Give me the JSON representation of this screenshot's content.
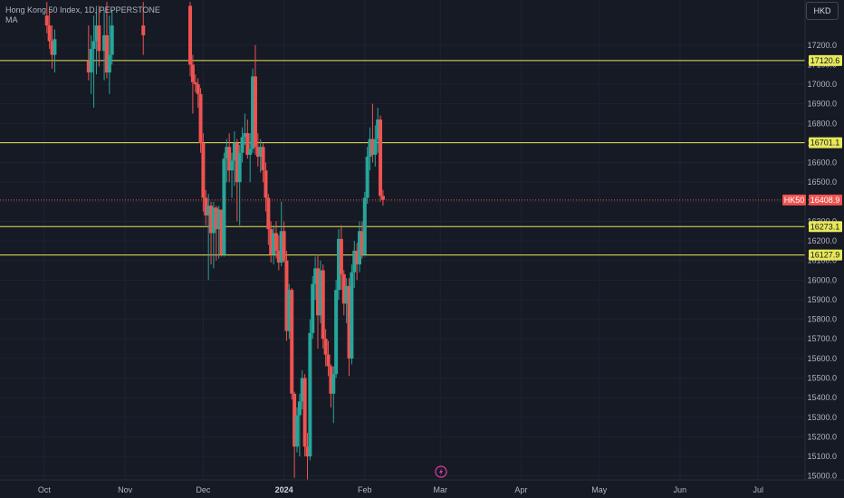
{
  "header": {
    "symbol_title": "Hong Kong 50 Index, 1D, PEPPERSTONE",
    "indicator": "MA",
    "currency": "HKD"
  },
  "colors": {
    "background": "#161a25",
    "grid": "#1f2330",
    "up": "#26a69a",
    "down": "#ef5350",
    "hline": "#e8e85a",
    "axis_text": "#b2b5be",
    "price_line": "#ef5350"
  },
  "icons": {
    "bottom_marker": "lightning-icon"
  },
  "chart_data": {
    "type": "candlestick",
    "title": "Hong Kong 50 Index, 1D, PEPPERSTONE",
    "symbol": "HK50",
    "currency": "HKD",
    "ylim": [
      14980,
      17430
    ],
    "y_ticks": [
      15000,
      15100,
      15200,
      15300,
      15400,
      15500,
      15600,
      15700,
      15800,
      15900,
      16000,
      16100,
      16200,
      16300,
      16400,
      16500,
      16600,
      16700,
      16800,
      16900,
      17000,
      17100,
      17200
    ],
    "x_ticks": [
      "Oct",
      "Nov",
      "Dec",
      "2024",
      "Feb",
      "Mar",
      "Apr",
      "May",
      "Jun",
      "Jul"
    ],
    "x_ticks_bold": [
      "2024"
    ],
    "x_tick_days": [
      0,
      31,
      61,
      92,
      123,
      152,
      183,
      213,
      244,
      274
    ],
    "x_domain_days": [
      -17,
      292
    ],
    "horizontal_levels": [
      17120.6,
      16701.1,
      16273.1,
      16127.9
    ],
    "horizontal_level_labels": [
      "17120.6",
      "16701.1",
      "16273.1",
      "16127.9"
    ],
    "last_price": 16408.9,
    "last_price_label": "16408.9",
    "last_price_symbol": "HK50",
    "grid": true,
    "candles": [
      {
        "day": 1,
        "o": 17350,
        "h": 17420,
        "l": 17260,
        "c": 17300
      },
      {
        "day": 2,
        "o": 17300,
        "h": 17380,
        "l": 17180,
        "c": 17220
      },
      {
        "day": 3,
        "o": 17220,
        "h": 17300,
        "l": 17080,
        "c": 17150
      },
      {
        "day": 4,
        "o": 17150,
        "h": 17280,
        "l": 17060,
        "c": 17230
      },
      {
        "day": 17,
        "o": 17120,
        "h": 17300,
        "l": 17020,
        "c": 17060
      },
      {
        "day": 18,
        "o": 17060,
        "h": 17250,
        "l": 16950,
        "c": 17180
      },
      {
        "day": 19,
        "o": 17180,
        "h": 17350,
        "l": 16880,
        "c": 17220
      },
      {
        "day": 20,
        "o": 17220,
        "h": 17400,
        "l": 17050,
        "c": 17300
      },
      {
        "day": 21,
        "o": 17300,
        "h": 17400,
        "l": 17090,
        "c": 17170
      },
      {
        "day": 23,
        "o": 17170,
        "h": 17380,
        "l": 17020,
        "c": 17250
      },
      {
        "day": 24,
        "o": 17250,
        "h": 17420,
        "l": 17030,
        "c": 17060
      },
      {
        "day": 25,
        "o": 17060,
        "h": 17350,
        "l": 16950,
        "c": 17150
      },
      {
        "day": 26,
        "o": 17150,
        "h": 17380,
        "l": 17100,
        "c": 17300
      },
      {
        "day": 38,
        "o": 17300,
        "h": 17420,
        "l": 17150,
        "c": 17250
      },
      {
        "day": 56,
        "o": 17400,
        "h": 17420,
        "l": 17040,
        "c": 17100
      },
      {
        "day": 57,
        "o": 17100,
        "h": 17150,
        "l": 16850,
        "c": 17010
      },
      {
        "day": 58,
        "o": 17010,
        "h": 17050,
        "l": 16960,
        "c": 17000
      },
      {
        "day": 59,
        "o": 17000,
        "h": 17030,
        "l": 16880,
        "c": 16950
      },
      {
        "day": 60,
        "o": 16950,
        "h": 16980,
        "l": 16650,
        "c": 16700
      },
      {
        "day": 61,
        "o": 16700,
        "h": 16750,
        "l": 16350,
        "c": 16420
      },
      {
        "day": 62,
        "o": 16420,
        "h": 16460,
        "l": 16280,
        "c": 16330
      },
      {
        "day": 63,
        "o": 16330,
        "h": 16440,
        "l": 16000,
        "c": 16380
      },
      {
        "day": 64,
        "o": 16380,
        "h": 16400,
        "l": 16080,
        "c": 16240
      },
      {
        "day": 65,
        "o": 16240,
        "h": 16400,
        "l": 16060,
        "c": 16370
      },
      {
        "day": 66,
        "o": 16370,
        "h": 16380,
        "l": 16100,
        "c": 16260
      },
      {
        "day": 67,
        "o": 16260,
        "h": 16380,
        "l": 16110,
        "c": 16360
      },
      {
        "day": 68,
        "o": 16360,
        "h": 16360,
        "l": 16120,
        "c": 16130
      },
      {
        "day": 69,
        "o": 16130,
        "h": 16650,
        "l": 16120,
        "c": 16620
      },
      {
        "day": 70,
        "o": 16620,
        "h": 16720,
        "l": 16500,
        "c": 16680
      },
      {
        "day": 71,
        "o": 16680,
        "h": 16750,
        "l": 16500,
        "c": 16560
      },
      {
        "day": 72,
        "o": 16560,
        "h": 16650,
        "l": 16420,
        "c": 16610
      },
      {
        "day": 73,
        "o": 16610,
        "h": 16760,
        "l": 16480,
        "c": 16700
      },
      {
        "day": 74,
        "o": 16700,
        "h": 16720,
        "l": 16300,
        "c": 16500
      },
      {
        "day": 75,
        "o": 16500,
        "h": 16690,
        "l": 16280,
        "c": 16650
      },
      {
        "day": 76,
        "o": 16650,
        "h": 16780,
        "l": 16600,
        "c": 16730
      },
      {
        "day": 77,
        "o": 16730,
        "h": 16850,
        "l": 16690,
        "c": 16750
      },
      {
        "day": 78,
        "o": 16750,
        "h": 16820,
        "l": 16620,
        "c": 16640
      },
      {
        "day": 79,
        "o": 16640,
        "h": 16750,
        "l": 16500,
        "c": 16670
      },
      {
        "day": 80,
        "o": 16670,
        "h": 17080,
        "l": 16650,
        "c": 17040
      },
      {
        "day": 81,
        "o": 17040,
        "h": 17200,
        "l": 16640,
        "c": 16680
      },
      {
        "day": 82,
        "o": 16680,
        "h": 16750,
        "l": 16580,
        "c": 16630
      },
      {
        "day": 83,
        "o": 16630,
        "h": 16720,
        "l": 16550,
        "c": 16680
      },
      {
        "day": 84,
        "o": 16680,
        "h": 16700,
        "l": 16500,
        "c": 16560
      },
      {
        "day": 85,
        "o": 16560,
        "h": 16600,
        "l": 16350,
        "c": 16420
      },
      {
        "day": 86,
        "o": 16420,
        "h": 16440,
        "l": 16180,
        "c": 16260
      },
      {
        "day": 87,
        "o": 16260,
        "h": 16300,
        "l": 16090,
        "c": 16130
      },
      {
        "day": 88,
        "o": 16130,
        "h": 16280,
        "l": 16080,
        "c": 16240
      },
      {
        "day": 89,
        "o": 16240,
        "h": 16300,
        "l": 16110,
        "c": 16150
      },
      {
        "day": 90,
        "o": 16150,
        "h": 16230,
        "l": 16050,
        "c": 16090
      },
      {
        "day": 91,
        "o": 16090,
        "h": 16400,
        "l": 16070,
        "c": 16250
      },
      {
        "day": 92,
        "o": 16250,
        "h": 16300,
        "l": 16090,
        "c": 16100
      },
      {
        "day": 93,
        "o": 16100,
        "h": 16150,
        "l": 15690,
        "c": 15740
      },
      {
        "day": 94,
        "o": 15740,
        "h": 15980,
        "l": 15700,
        "c": 15950
      },
      {
        "day": 95,
        "o": 15950,
        "h": 15960,
        "l": 15390,
        "c": 15420
      },
      {
        "day": 96,
        "o": 15420,
        "h": 15430,
        "l": 14990,
        "c": 15150
      },
      {
        "day": 97,
        "o": 15150,
        "h": 15350,
        "l": 15120,
        "c": 15310
      },
      {
        "day": 98,
        "o": 15310,
        "h": 15420,
        "l": 15100,
        "c": 15380
      },
      {
        "day": 99,
        "o": 15380,
        "h": 15540,
        "l": 15340,
        "c": 15500
      },
      {
        "day": 100,
        "o": 15500,
        "h": 15520,
        "l": 15100,
        "c": 15150
      },
      {
        "day": 101,
        "o": 15150,
        "h": 15220,
        "l": 14980,
        "c": 15100
      },
      {
        "day": 102,
        "o": 15100,
        "h": 15800,
        "l": 15080,
        "c": 15730
      },
      {
        "day": 103,
        "o": 15730,
        "h": 16020,
        "l": 15700,
        "c": 15980
      },
      {
        "day": 104,
        "o": 15980,
        "h": 16120,
        "l": 15900,
        "c": 16060
      },
      {
        "day": 105,
        "o": 16060,
        "h": 16130,
        "l": 15650,
        "c": 15820
      },
      {
        "day": 106,
        "o": 15820,
        "h": 16100,
        "l": 15780,
        "c": 16050
      },
      {
        "day": 107,
        "o": 16050,
        "h": 16080,
        "l": 15650,
        "c": 15700
      },
      {
        "day": 108,
        "o": 15700,
        "h": 15750,
        "l": 15560,
        "c": 15620
      },
      {
        "day": 109,
        "o": 15620,
        "h": 15690,
        "l": 15510,
        "c": 15560
      },
      {
        "day": 110,
        "o": 15560,
        "h": 15570,
        "l": 15350,
        "c": 15420
      },
      {
        "day": 111,
        "o": 15420,
        "h": 15560,
        "l": 15270,
        "c": 15520
      },
      {
        "day": 112,
        "o": 15520,
        "h": 16000,
        "l": 15500,
        "c": 15950
      },
      {
        "day": 113,
        "o": 15950,
        "h": 16260,
        "l": 15900,
        "c": 16210
      },
      {
        "day": 114,
        "o": 16210,
        "h": 16280,
        "l": 15950,
        "c": 16030
      },
      {
        "day": 115,
        "o": 16030,
        "h": 16050,
        "l": 15820,
        "c": 15880
      },
      {
        "day": 116,
        "o": 15880,
        "h": 16010,
        "l": 15780,
        "c": 15970
      },
      {
        "day": 117,
        "o": 15970,
        "h": 16010,
        "l": 15510,
        "c": 15600
      },
      {
        "day": 118,
        "o": 15600,
        "h": 16080,
        "l": 15570,
        "c": 16040
      },
      {
        "day": 119,
        "o": 16040,
        "h": 16200,
        "l": 15960,
        "c": 16150
      },
      {
        "day": 120,
        "o": 16150,
        "h": 16190,
        "l": 16000,
        "c": 16080
      },
      {
        "day": 121,
        "o": 16080,
        "h": 16300,
        "l": 16040,
        "c": 16250
      },
      {
        "day": 122,
        "o": 16250,
        "h": 16300,
        "l": 16110,
        "c": 16130
      },
      {
        "day": 123,
        "o": 16130,
        "h": 16450,
        "l": 16120,
        "c": 16420
      },
      {
        "day": 124,
        "o": 16420,
        "h": 16680,
        "l": 16390,
        "c": 16630
      },
      {
        "day": 125,
        "o": 16630,
        "h": 16780,
        "l": 16560,
        "c": 16720
      },
      {
        "day": 126,
        "o": 16720,
        "h": 16900,
        "l": 16600,
        "c": 16640
      },
      {
        "day": 127,
        "o": 16640,
        "h": 16790,
        "l": 16580,
        "c": 16720
      },
      {
        "day": 128,
        "o": 16720,
        "h": 16880,
        "l": 16650,
        "c": 16820
      },
      {
        "day": 129,
        "o": 16820,
        "h": 16840,
        "l": 16400,
        "c": 16430
      },
      {
        "day": 130,
        "o": 16430,
        "h": 16460,
        "l": 16380,
        "c": 16410
      }
    ]
  }
}
